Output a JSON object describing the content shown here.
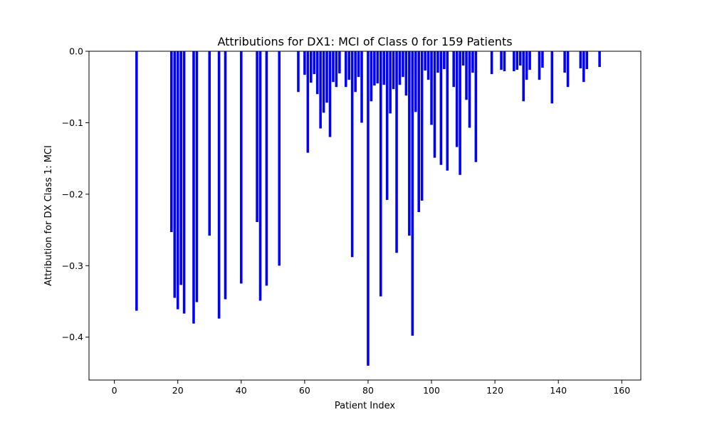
{
  "chart_data": {
    "type": "bar",
    "title": "Attributions for DX1: MCI of Class 0 for 159 Patients",
    "xlabel": "Patient Index",
    "ylabel": "Attribution for DX Class 1: MCI",
    "xlim": [
      -8,
      166
    ],
    "ylim": [
      -0.46,
      0.0
    ],
    "xticks": [
      0,
      20,
      40,
      60,
      80,
      100,
      120,
      140,
      160
    ],
    "yticks": [
      0.0,
      -0.1,
      -0.2,
      -0.3,
      -0.4
    ],
    "ytick_labels": [
      "0.0",
      "−0.1",
      "−0.2",
      "−0.3",
      "−0.4"
    ],
    "grid": false,
    "bar_color": "#0000ff",
    "x": [
      7,
      18,
      19,
      20,
      21,
      22,
      25,
      26,
      30,
      33,
      35,
      40,
      45,
      46,
      48,
      52,
      58,
      60,
      61,
      62,
      63,
      64,
      65,
      66,
      67,
      68,
      69,
      70,
      71,
      73,
      74,
      75,
      76,
      77,
      78,
      80,
      81,
      82,
      83,
      84,
      85,
      86,
      87,
      88,
      89,
      90,
      91,
      92,
      93,
      94,
      95,
      96,
      97,
      98,
      99,
      100,
      101,
      102,
      103,
      104,
      105,
      107,
      108,
      109,
      110,
      111,
      112,
      113,
      114,
      119,
      122,
      123,
      126,
      127,
      128,
      129,
      130,
      131,
      134,
      135,
      138,
      142,
      143,
      147,
      148,
      149,
      153
    ],
    "values": [
      -0.363,
      -0.253,
      -0.345,
      -0.361,
      -0.327,
      -0.367,
      -0.381,
      -0.351,
      -0.258,
      -0.374,
      -0.347,
      -0.325,
      -0.239,
      -0.349,
      -0.328,
      -0.3,
      -0.057,
      -0.033,
      -0.142,
      -0.044,
      -0.032,
      -0.06,
      -0.108,
      -0.086,
      -0.072,
      -0.12,
      -0.043,
      -0.05,
      -0.031,
      -0.05,
      -0.04,
      -0.288,
      -0.057,
      -0.036,
      -0.1,
      -0.44,
      -0.07,
      -0.048,
      -0.045,
      -0.343,
      -0.047,
      -0.208,
      -0.087,
      -0.053,
      -0.282,
      -0.047,
      -0.036,
      -0.062,
      -0.258,
      -0.398,
      -0.085,
      -0.225,
      -0.209,
      -0.027,
      -0.04,
      -0.103,
      -0.149,
      -0.03,
      -0.159,
      -0.025,
      -0.167,
      -0.05,
      -0.134,
      -0.173,
      -0.02,
      -0.068,
      -0.107,
      -0.03,
      -0.155,
      -0.032,
      -0.026,
      -0.028,
      -0.028,
      -0.026,
      -0.02,
      -0.07,
      -0.04,
      -0.026,
      -0.04,
      -0.023,
      -0.073,
      -0.03,
      -0.05,
      -0.024,
      -0.043,
      -0.025,
      -0.022
    ]
  }
}
